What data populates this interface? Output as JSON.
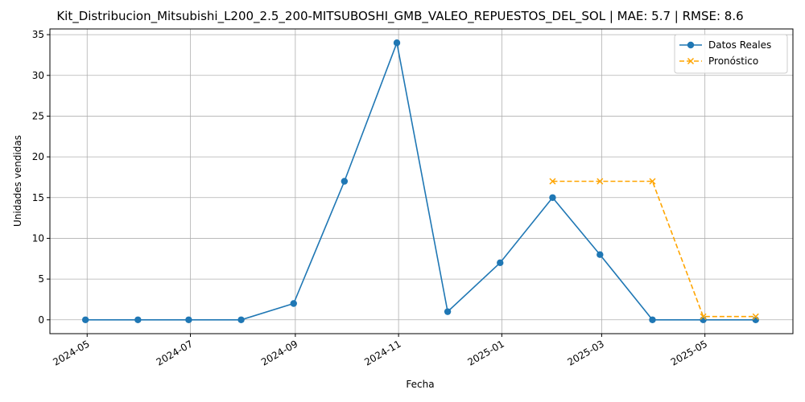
{
  "chart_data": {
    "type": "line",
    "title": "Kit_Distribucion_Mitsubishi_L200_2.5_200-MITSUBOSHI_GMB_VALEO_REPUESTOS_DEL_SOL | MAE: 5.7 | RMSE: 8.6",
    "xlabel": "Fecha",
    "ylabel": "Unidades vendidas",
    "x_ticks": [
      "2024-05",
      "2024-07",
      "2024-09",
      "2024-11",
      "2025-01",
      "2025-03",
      "2025-05"
    ],
    "y_ticks": [
      0,
      5,
      10,
      15,
      20,
      25,
      30,
      35
    ],
    "xlim": [
      "2024-04-09",
      "2025-06-22"
    ],
    "ylim": [
      -1.7,
      35.7
    ],
    "grid": true,
    "legend_position": "top-right",
    "series": [
      {
        "name": "Datos Reales",
        "color": "#1f77b4",
        "style": "solid",
        "marker": "circle",
        "x": [
          "2024-04-30",
          "2024-05-31",
          "2024-06-30",
          "2024-07-31",
          "2024-08-31",
          "2024-09-30",
          "2024-10-31",
          "2024-11-30",
          "2024-12-31",
          "2025-01-31",
          "2025-02-28",
          "2025-03-31",
          "2025-04-30",
          "2025-05-31"
        ],
        "y": [
          0,
          0,
          0,
          0,
          2,
          17,
          34,
          1,
          7,
          15,
          8,
          0,
          0,
          0
        ]
      },
      {
        "name": "Pronóstico",
        "color": "#ffa500",
        "style": "dashed",
        "marker": "x",
        "x": [
          "2025-01-31",
          "2025-02-28",
          "2025-03-31",
          "2025-04-30",
          "2025-05-31"
        ],
        "y": [
          17,
          17,
          17,
          0.4,
          0.4
        ]
      }
    ]
  }
}
